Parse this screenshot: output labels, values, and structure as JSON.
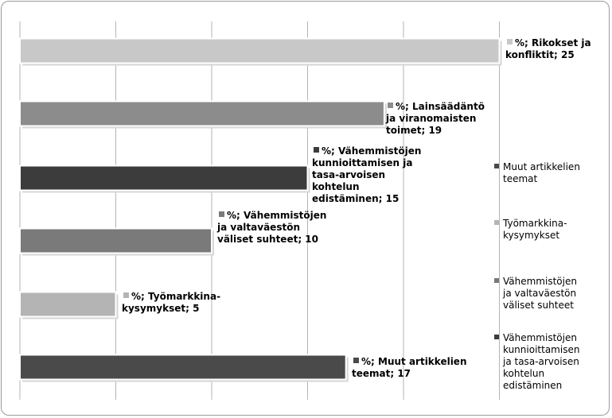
{
  "chart_data": {
    "type": "bar",
    "orientation": "horizontal",
    "xlim": [
      0,
      25
    ],
    "grid": true,
    "legend_position": "right",
    "categories": [
      "Rikokset ja konfliktit",
      "Lainsäädäntö ja viranomaisten toimet",
      "Vähemmistöjen kunnioittamisen ja tasa-arvoisen kohtelun edistäminen",
      "Vähemmistöjen ja valtaväestön väliset suhteet",
      "Työmarkkina-kysymykset",
      "Muut artikkelien teemat"
    ],
    "values": [
      25,
      19,
      15,
      10,
      5,
      17
    ],
    "bar_colors": [
      "#c8c8c8",
      "#8c8c8c",
      "#3c3c3c",
      "#7a7a7a",
      "#b4b4b4",
      "#4a4a4a"
    ],
    "data_labels": [
      [
        "%; Rikokset ja",
        "konfliktit; 25"
      ],
      [
        "%; Lainsäädäntö",
        "ja viranomaisten",
        "toimet; 19"
      ],
      [
        "%; Vähemmistöjen",
        "kunnioittamisen ja",
        "tasa-arvoisen",
        "kohtelun",
        "edistäminen; 15"
      ],
      [
        "%; Vähemmistöjen",
        "ja valtaväestön",
        "väliset suhteet; 10"
      ],
      [
        "%; Työmarkkina-",
        "kysymykset; 5"
      ],
      [
        "%; Muut artikkelien",
        "teemat; 17"
      ]
    ],
    "legend": [
      {
        "lines": [
          "Muut artikkelien",
          "teemat"
        ],
        "color": "#4a4a4a"
      },
      {
        "lines": [
          "Työmarkkina-",
          "kysymykset"
        ],
        "color": "#b4b4b4"
      },
      {
        "lines": [
          "Vähemmistöjen",
          "ja valtaväestön",
          "väliset suhteet"
        ],
        "color": "#7a7a7a"
      },
      {
        "lines": [
          "Vähemmistöjen",
          "kunnioittamisen",
          "ja tasa-arvoisen",
          "kohtelun",
          "edistäminen"
        ],
        "color": "#3c3c3c"
      }
    ]
  }
}
